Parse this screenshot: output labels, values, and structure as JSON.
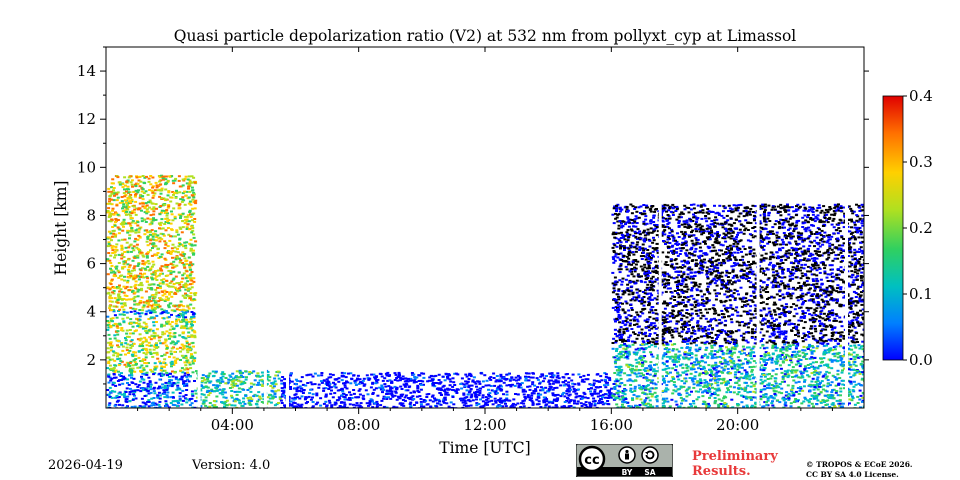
{
  "chart_data": {
    "type": "heatmap",
    "title": "Quasi particle depolarization ratio (V2) at 532 nm from pollyxt_cyp at Limassol",
    "xlabel": "Time [UTC]",
    "ylabel": "Height [km]",
    "xlim_hours": [
      0,
      24
    ],
    "ylim_km": [
      0,
      15
    ],
    "x_ticks": [
      {
        "value": 4,
        "label": "04:00"
      },
      {
        "value": 8,
        "label": "08:00"
      },
      {
        "value": 12,
        "label": "12:00"
      },
      {
        "value": 16,
        "label": "16:00"
      },
      {
        "value": 20,
        "label": "20:00"
      }
    ],
    "y_ticks": [
      2,
      4,
      6,
      8,
      10,
      12,
      14
    ],
    "colorbar": {
      "min": 0.0,
      "max": 0.4,
      "ticks": [
        "0.0",
        "0.1",
        "0.2",
        "0.3",
        "0.4"
      ],
      "colormap": [
        "#0000ff",
        "#0080ff",
        "#00c0c0",
        "#30d060",
        "#b0e020",
        "#ffd000",
        "#ff7000",
        "#e00000"
      ]
    },
    "regions": [
      {
        "t_start": 0.0,
        "t_end": 2.8,
        "h_bottom": 0.0,
        "h_top": 1.5,
        "value": 0.05
      },
      {
        "t_start": 0.0,
        "t_end": 2.8,
        "h_bottom": 1.5,
        "h_top": 3.8,
        "value": 0.22
      },
      {
        "t_start": 0.0,
        "t_end": 2.8,
        "h_bottom": 3.8,
        "h_top": 4.1,
        "value": 0.08
      },
      {
        "t_start": 0.0,
        "t_end": 2.8,
        "h_bottom": 4.1,
        "h_top": 9.7,
        "value": 0.25
      },
      {
        "t_start": 2.8,
        "t_end": 5.5,
        "h_bottom": 0.0,
        "h_top": 1.6,
        "value": 0.15
      },
      {
        "t_start": 5.5,
        "t_end": 16.0,
        "h_bottom": 0.0,
        "h_top": 1.5,
        "value": 0.03
      },
      {
        "t_start": 16.0,
        "t_end": 24.0,
        "h_bottom": 0.0,
        "h_top": 2.7,
        "value": 0.12
      },
      {
        "t_start": 16.0,
        "t_end": 24.0,
        "h_bottom": 2.7,
        "h_top": 8.5,
        "value": 0.02
      }
    ],
    "data_gaps_hours": [
      2.9,
      5.0,
      5.7,
      17.5,
      20.6,
      23.4
    ]
  },
  "footer": {
    "date": "2026-04-19",
    "version": "Version: 4.0",
    "preliminary": "Preliminary Results.",
    "copyright_line1": "© TROPOS & ECoE 2026.",
    "copyright_line2": "CC BY SA 4.0 License."
  },
  "license_badge": {
    "by": "BY",
    "sa": "SA",
    "cc": "cc"
  }
}
